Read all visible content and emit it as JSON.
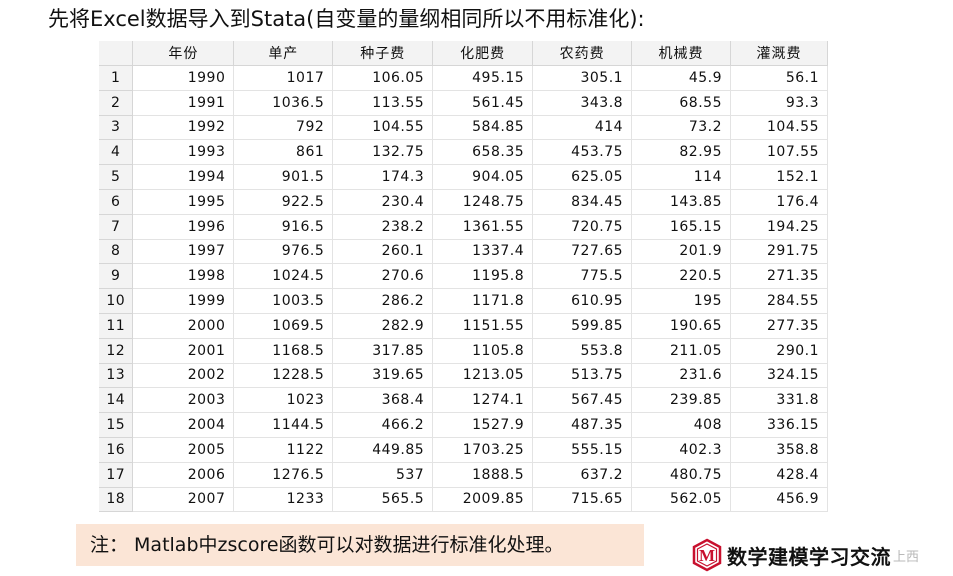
{
  "heading": "先将Excel数据导入到Stata(自变量的量纲相同所以不用标准化):",
  "table": {
    "headers": [
      "",
      "年份",
      "单产",
      "种子费",
      "化肥费",
      "农药费",
      "机械费",
      "灌溉费"
    ],
    "rows": [
      [
        "1",
        "1990",
        "1017",
        "106.05",
        "495.15",
        "305.1",
        "45.9",
        "56.1"
      ],
      [
        "2",
        "1991",
        "1036.5",
        "113.55",
        "561.45",
        "343.8",
        "68.55",
        "93.3"
      ],
      [
        "3",
        "1992",
        "792",
        "104.55",
        "584.85",
        "414",
        "73.2",
        "104.55"
      ],
      [
        "4",
        "1993",
        "861",
        "132.75",
        "658.35",
        "453.75",
        "82.95",
        "107.55"
      ],
      [
        "5",
        "1994",
        "901.5",
        "174.3",
        "904.05",
        "625.05",
        "114",
        "152.1"
      ],
      [
        "6",
        "1995",
        "922.5",
        "230.4",
        "1248.75",
        "834.45",
        "143.85",
        "176.4"
      ],
      [
        "7",
        "1996",
        "916.5",
        "238.2",
        "1361.55",
        "720.75",
        "165.15",
        "194.25"
      ],
      [
        "8",
        "1997",
        "976.5",
        "260.1",
        "1337.4",
        "727.65",
        "201.9",
        "291.75"
      ],
      [
        "9",
        "1998",
        "1024.5",
        "270.6",
        "1195.8",
        "775.5",
        "220.5",
        "271.35"
      ],
      [
        "10",
        "1999",
        "1003.5",
        "286.2",
        "1171.8",
        "610.95",
        "195",
        "284.55"
      ],
      [
        "11",
        "2000",
        "1069.5",
        "282.9",
        "1151.55",
        "599.85",
        "190.65",
        "277.35"
      ],
      [
        "12",
        "2001",
        "1168.5",
        "317.85",
        "1105.8",
        "553.8",
        "211.05",
        "290.1"
      ],
      [
        "13",
        "2002",
        "1228.5",
        "319.65",
        "1213.05",
        "513.75",
        "231.6",
        "324.15"
      ],
      [
        "14",
        "2003",
        "1023",
        "368.4",
        "1274.1",
        "567.45",
        "239.85",
        "331.8"
      ],
      [
        "15",
        "2004",
        "1144.5",
        "466.2",
        "1527.9",
        "487.35",
        "408",
        "336.15"
      ],
      [
        "16",
        "2005",
        "1122",
        "449.85",
        "1703.25",
        "555.15",
        "402.3",
        "358.8"
      ],
      [
        "17",
        "2006",
        "1276.5",
        "537",
        "1888.5",
        "637.2",
        "480.75",
        "428.4"
      ],
      [
        "18",
        "2007",
        "1233",
        "565.5",
        "2009.85",
        "715.65",
        "562.05",
        "456.9"
      ]
    ]
  },
  "note": "注：  Matlab中zscore函数可以对数据进行标准化处理。",
  "brand": {
    "name": "数学建模学习交流",
    "logo_letter": "M",
    "tail": "上西",
    "logo_color": "#c8102e"
  }
}
